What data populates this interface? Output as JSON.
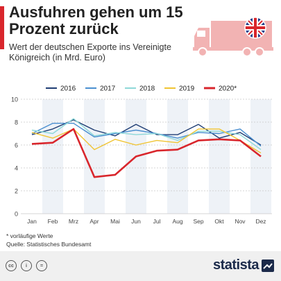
{
  "header": {
    "title": "Ausfuhren gehen um 15 Prozent zurück",
    "subtitle": "Wert der deutschen Exporte ins Vereinigte Königreich (in Mrd. Euro)"
  },
  "colors": {
    "accent": "#d9262c",
    "truck": "#f2b3b3",
    "brand": "#1b2a4a"
  },
  "icons": [
    "truck-icon",
    "uk-flag-icon",
    "cc-license-icon",
    "cc-by-icon",
    "cc-nd-icon",
    "statista-logo-icon"
  ],
  "chart_data": {
    "type": "line",
    "categories": [
      "Jan",
      "Feb",
      "Mrz",
      "Apr",
      "Mai",
      "Jun",
      "Jul",
      "Aug",
      "Sep",
      "Okt",
      "Nov",
      "Dez"
    ],
    "ylim": [
      0,
      10
    ],
    "yticks": [
      "0",
      "2",
      "4",
      "6",
      "8",
      "10"
    ],
    "grid": true,
    "legend_position": "top",
    "series": [
      {
        "name": "2016",
        "color": "#1f3d73",
        "values": [
          6.9,
          7.4,
          8.2,
          7.3,
          6.8,
          7.8,
          6.9,
          6.9,
          7.8,
          6.6,
          7.1,
          6.0
        ]
      },
      {
        "name": "2017",
        "color": "#4a8fd0",
        "values": [
          7.0,
          7.9,
          7.9,
          6.7,
          7.0,
          7.3,
          7.0,
          6.6,
          7.1,
          7.0,
          7.4,
          5.9
        ]
      },
      {
        "name": "2018",
        "color": "#8ed8d8",
        "values": [
          7.3,
          7.0,
          8.3,
          6.8,
          7.1,
          6.9,
          7.0,
          6.4,
          7.2,
          7.2,
          6.9,
          5.6
        ]
      },
      {
        "name": "2019",
        "color": "#f0c432",
        "values": [
          7.1,
          6.6,
          7.4,
          5.6,
          6.5,
          6.0,
          6.4,
          6.2,
          7.4,
          7.4,
          6.4,
          5.3
        ]
      },
      {
        "name": "2020",
        "legend_label": "2020*",
        "color": "#d9262c",
        "values": [
          6.1,
          6.2,
          7.4,
          3.2,
          3.4,
          5.0,
          5.5,
          5.6,
          6.4,
          6.5,
          6.4,
          5.0
        ]
      }
    ]
  },
  "footer": {
    "footnote": "* vorläufige Werte",
    "source": "Quelle: Statistisches Bundesamt",
    "brand": "statista"
  }
}
